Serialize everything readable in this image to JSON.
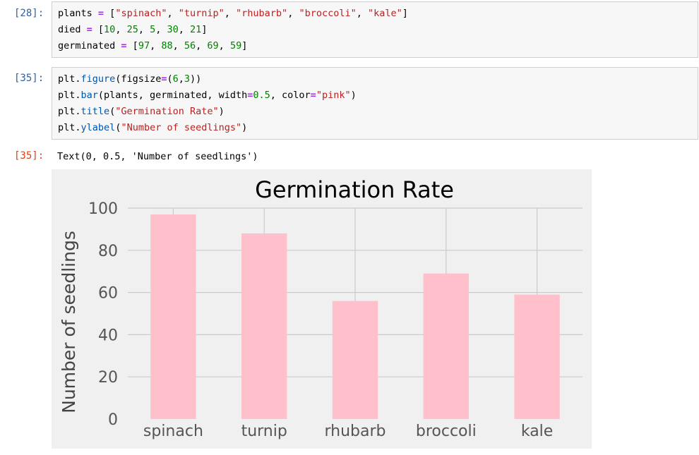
{
  "cells": [
    {
      "prompt": "[28]:",
      "lines": [
        [
          [
            "plants ",
            ""
          ],
          [
            "=",
            "kw-eq"
          ],
          [
            " [",
            ""
          ],
          [
            "\"spinach\"",
            "str"
          ],
          [
            ", ",
            ""
          ],
          [
            "\"turnip\"",
            "str"
          ],
          [
            ", ",
            ""
          ],
          [
            "\"rhubarb\"",
            "str"
          ],
          [
            ", ",
            ""
          ],
          [
            "\"broccoli\"",
            "str"
          ],
          [
            ", ",
            ""
          ],
          [
            "\"kale\"",
            "str"
          ],
          [
            "]",
            ""
          ]
        ],
        [
          [
            "died ",
            ""
          ],
          [
            "=",
            "kw-eq"
          ],
          [
            " [",
            ""
          ],
          [
            "10",
            "num"
          ],
          [
            ", ",
            ""
          ],
          [
            "25",
            "num"
          ],
          [
            ", ",
            ""
          ],
          [
            "5",
            "num"
          ],
          [
            ", ",
            ""
          ],
          [
            "30",
            "num"
          ],
          [
            ", ",
            ""
          ],
          [
            "21",
            "num"
          ],
          [
            "]",
            ""
          ]
        ],
        [
          [
            "germinated ",
            ""
          ],
          [
            "=",
            "kw-eq"
          ],
          [
            " [",
            ""
          ],
          [
            "97",
            "num"
          ],
          [
            ", ",
            ""
          ],
          [
            "88",
            "num"
          ],
          [
            ", ",
            ""
          ],
          [
            "56",
            "num"
          ],
          [
            ", ",
            ""
          ],
          [
            "69",
            "num"
          ],
          [
            ", ",
            ""
          ],
          [
            "59",
            "num"
          ],
          [
            "]",
            ""
          ]
        ]
      ]
    },
    {
      "prompt": "[35]:",
      "lines": [
        [
          [
            "plt.",
            ""
          ],
          [
            "figure",
            "fn"
          ],
          [
            "(figsize",
            ""
          ],
          [
            "=",
            "kw-eq"
          ],
          [
            "(",
            ""
          ],
          [
            "6",
            "num"
          ],
          [
            ",",
            ""
          ],
          [
            "3",
            "num"
          ],
          [
            "))",
            ""
          ]
        ],
        [
          [
            "plt.",
            ""
          ],
          [
            "bar",
            "fn"
          ],
          [
            "(plants, germinated, width",
            ""
          ],
          [
            "=",
            "kw-eq"
          ],
          [
            "0.5",
            "num"
          ],
          [
            ", color",
            ""
          ],
          [
            "=",
            "kw-eq"
          ],
          [
            "\"pink\"",
            "str"
          ],
          [
            ")",
            ""
          ]
        ],
        [
          [
            "plt.",
            ""
          ],
          [
            "title",
            "fn"
          ],
          [
            "(",
            ""
          ],
          [
            "\"Germination Rate\"",
            "str"
          ],
          [
            ")",
            ""
          ]
        ],
        [
          [
            "plt.",
            ""
          ],
          [
            "ylabel",
            "fn"
          ],
          [
            "(",
            ""
          ],
          [
            "\"Number of seedlings\"",
            "str"
          ],
          [
            ")",
            ""
          ]
        ]
      ]
    }
  ],
  "output": {
    "prompt": "[35]:",
    "text": "Text(0, 0.5, 'Number of seedlings')"
  },
  "colors": {
    "bar": "#ffc0cb",
    "plot_bg": "#f0f0f0",
    "grid": "#cbcbcb",
    "text": "#000000",
    "tick_text": "#555555"
  },
  "chart_data": {
    "type": "bar",
    "title": "Germination Rate",
    "xlabel": "",
    "ylabel": "Number of seedlings",
    "categories": [
      "spinach",
      "turnip",
      "rhubarb",
      "broccoli",
      "kale"
    ],
    "values": [
      97,
      88,
      56,
      69,
      59
    ],
    "ylim": [
      0,
      100
    ],
    "yticks": [
      0,
      20,
      40,
      60,
      80,
      100
    ],
    "grid": true,
    "bar_width": 0.5
  }
}
